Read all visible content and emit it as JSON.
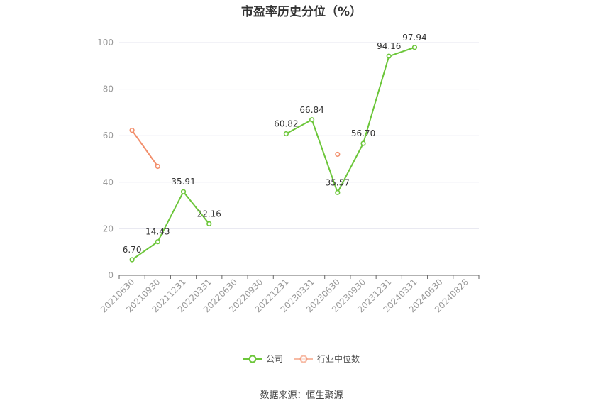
{
  "title": "市盈率历史分位（%）",
  "source": "数据来源：恒生聚源",
  "colors": {
    "company": "#6cc63a",
    "industry": "#f28e6b",
    "grid": "#e6e6ef",
    "axis": "#999999"
  },
  "chart_data": {
    "type": "line",
    "categories": [
      "20210630",
      "20210930",
      "20211231",
      "20220331",
      "20220630",
      "20220930",
      "20221231",
      "20230331",
      "20230630",
      "20230930",
      "20231231",
      "20240331",
      "20240630",
      "20240828"
    ],
    "ylim": [
      0,
      100
    ],
    "yticks": [
      0,
      20,
      40,
      60,
      80,
      100
    ],
    "grid": true,
    "legend_position": "bottom",
    "series": [
      {
        "name": "公司",
        "values": [
          6.7,
          14.43,
          35.91,
          22.16,
          null,
          null,
          60.82,
          66.84,
          35.57,
          56.7,
          94.16,
          97.94,
          null,
          null
        ],
        "labels": true
      },
      {
        "name": "行业中位数",
        "values": [
          62.3,
          46.8,
          null,
          null,
          null,
          null,
          null,
          null,
          52.0,
          null,
          null,
          null,
          null,
          null
        ],
        "labels": false
      }
    ]
  }
}
